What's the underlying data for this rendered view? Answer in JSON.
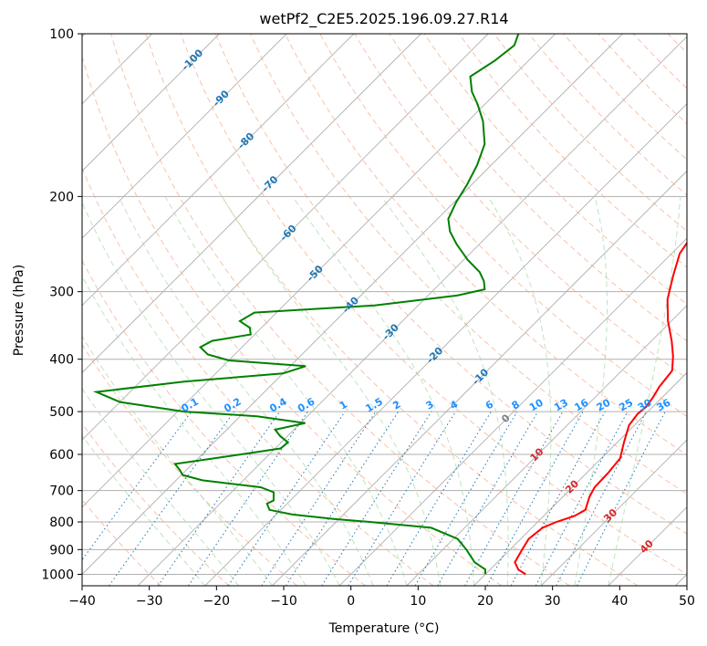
{
  "chart_data": {
    "type": "line",
    "subtype": "skew-t log-p",
    "title": "wetPf2_C2E5.2025.196.09.27.R14",
    "xlabel": "Temperature (°C)",
    "ylabel": "Pressure (hPa)",
    "xlim": [
      -40,
      50
    ],
    "ylim": [
      1050,
      100
    ],
    "y_scale": "log",
    "grid": true,
    "x_ticks": [
      -40,
      -30,
      -20,
      -10,
      0,
      10,
      20,
      30,
      40,
      50
    ],
    "y_ticks": [
      100,
      200,
      300,
      400,
      500,
      600,
      700,
      800,
      900,
      1000
    ],
    "series": [
      {
        "role": "temperature",
        "color": "#ff0000",
        "points": [
          [
            1000,
            26
          ],
          [
            980,
            24.2
          ],
          [
            950,
            22.6
          ],
          [
            900,
            21.8
          ],
          [
            860,
            21.2
          ],
          [
            820,
            21.6
          ],
          [
            800,
            22.8
          ],
          [
            780,
            24.6
          ],
          [
            760,
            25.3
          ],
          [
            720,
            24.0
          ],
          [
            690,
            23.3
          ],
          [
            650,
            23.2
          ],
          [
            610,
            22.8
          ],
          [
            570,
            21.0
          ],
          [
            530,
            19.2
          ],
          [
            505,
            18.8
          ],
          [
            490,
            19.0
          ],
          [
            470,
            18.6
          ],
          [
            450,
            18.0
          ],
          [
            420,
            17.5
          ],
          [
            395,
            15.5
          ],
          [
            370,
            13.0
          ],
          [
            340,
            9.5
          ],
          [
            310,
            6.2
          ],
          [
            280,
            3.5
          ],
          [
            255,
            1.2
          ],
          [
            235,
            0.3
          ],
          [
            210,
            -0.8
          ],
          [
            195,
            -2.3
          ],
          [
            180,
            -4.6
          ],
          [
            165,
            -7.4
          ],
          [
            150,
            -10.2
          ],
          [
            135,
            -13.5
          ],
          [
            120,
            -17.7
          ],
          [
            110,
            -20.7
          ],
          [
            100,
            -23.3
          ]
        ]
      },
      {
        "role": "dewpoint",
        "color": "#008000",
        "points": [
          [
            1000,
            20
          ],
          [
            980,
            19.3
          ],
          [
            950,
            16.6
          ],
          [
            900,
            13.5
          ],
          [
            860,
            10.6
          ],
          [
            820,
            5.0
          ],
          [
            800,
            -5.0
          ],
          [
            790,
            -10.8
          ],
          [
            775,
            -17.6
          ],
          [
            760,
            -21.7
          ],
          [
            740,
            -23.0
          ],
          [
            730,
            -22.5
          ],
          [
            705,
            -23.7
          ],
          [
            690,
            -26.4
          ],
          [
            670,
            -36.1
          ],
          [
            655,
            -39.8
          ],
          [
            640,
            -41.1
          ],
          [
            625,
            -42.6
          ],
          [
            600,
            -34.2
          ],
          [
            585,
            -29.2
          ],
          [
            570,
            -29.0
          ],
          [
            555,
            -31.1
          ],
          [
            540,
            -32.8
          ],
          [
            525,
            -29.3
          ],
          [
            510,
            -37.5
          ],
          [
            500,
            -49.0
          ],
          [
            480,
            -60.0
          ],
          [
            460,
            -65.0
          ],
          [
            440,
            -53.5
          ],
          [
            425,
            -40.0
          ],
          [
            412,
            -37.7
          ],
          [
            402,
            -50.0
          ],
          [
            392,
            -54.0
          ],
          [
            380,
            -56.2
          ],
          [
            370,
            -55.4
          ],
          [
            360,
            -50.6
          ],
          [
            350,
            -51.7
          ],
          [
            340,
            -54.2
          ],
          [
            328,
            -53.3
          ],
          [
            318,
            -36.5
          ],
          [
            305,
            -25.7
          ],
          [
            297,
            -22.5
          ],
          [
            287,
            -23.8
          ],
          [
            276,
            -25.8
          ],
          [
            262,
            -29.4
          ],
          [
            245,
            -33.4
          ],
          [
            232,
            -36.3
          ],
          [
            220,
            -38.4
          ],
          [
            205,
            -39.7
          ],
          [
            190,
            -40.7
          ],
          [
            175,
            -42.1
          ],
          [
            160,
            -44.1
          ],
          [
            145,
            -47.8
          ],
          [
            135,
            -51.1
          ],
          [
            128,
            -53.8
          ],
          [
            120,
            -56.3
          ],
          [
            112,
            -55.0
          ],
          [
            105,
            -54.4
          ],
          [
            100,
            -55.5
          ]
        ]
      }
    ],
    "isotherm_labels": [
      "-100",
      "-90",
      "-80",
      "-70",
      "-60",
      "-50",
      "-40",
      "-30",
      "-20",
      "-10",
      "0",
      "10",
      "20",
      "30",
      "40"
    ],
    "mixing_ratio_labels": [
      "0.1",
      "0.2",
      "0.4",
      "0.6",
      "1",
      "1.5",
      "2",
      "3",
      "4",
      "6",
      "8",
      "10",
      "13",
      "16",
      "20",
      "25",
      "30",
      "36"
    ],
    "colors": {
      "temperature": "#ff0000",
      "dewpoint": "#008000",
      "skewed_isotherms": "#b0b0b0",
      "dry_adiabats": "#f4a582",
      "moist_adiabats": "#a6d9a6",
      "mixing_ratio_lines": "#1f77b4",
      "isotherm_labels_cold": "#1f77b4",
      "isotherm_labels_warm": "#d62728",
      "isotherm_label_zero": "#808080",
      "mixing_ratio_label": "#1e90ff"
    }
  }
}
